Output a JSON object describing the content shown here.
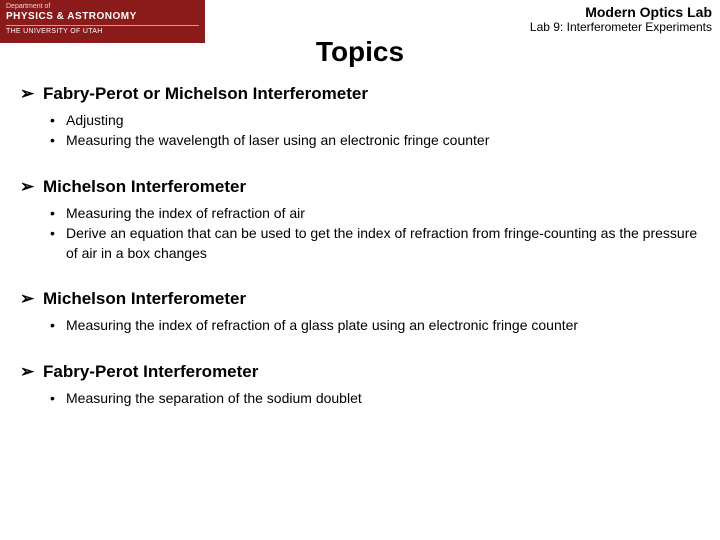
{
  "header": {
    "logo": {
      "dept_line": "Department of",
      "dept_name": "PHYSICS & ASTRONOMY",
      "univ_line": "THE UNIVERSITY OF UTAH",
      "bg_color": "#8b1a1a"
    },
    "right": {
      "title": "Modern Optics Lab",
      "subtitle": "Lab 9: Interferometer Experiments"
    }
  },
  "title": "Topics",
  "arrow_glyph": "➢",
  "sections": [
    {
      "heading": "Fabry-Perot or Michelson Interferometer",
      "items": [
        "Adjusting",
        "Measuring the wavelength of laser using an electronic fringe counter"
      ]
    },
    {
      "heading": "Michelson Interferometer",
      "items": [
        "Measuring the index of refraction of air",
        "Derive an equation that can be used to get the index of refraction from fringe-counting as the pressure of air in a box changes"
      ]
    },
    {
      "heading": "Michelson Interferometer",
      "items": [
        "Measuring the index of refraction of a glass plate using an electronic fringe counter"
      ]
    },
    {
      "heading": "Fabry-Perot Interferometer",
      "items": [
        "Measuring the separation of the sodium doublet"
      ]
    }
  ],
  "style": {
    "background_color": "#ffffff",
    "text_color": "#000000",
    "title_fontsize": 28,
    "heading_fontsize": 17,
    "body_fontsize": 14,
    "font_family": "Arial"
  }
}
